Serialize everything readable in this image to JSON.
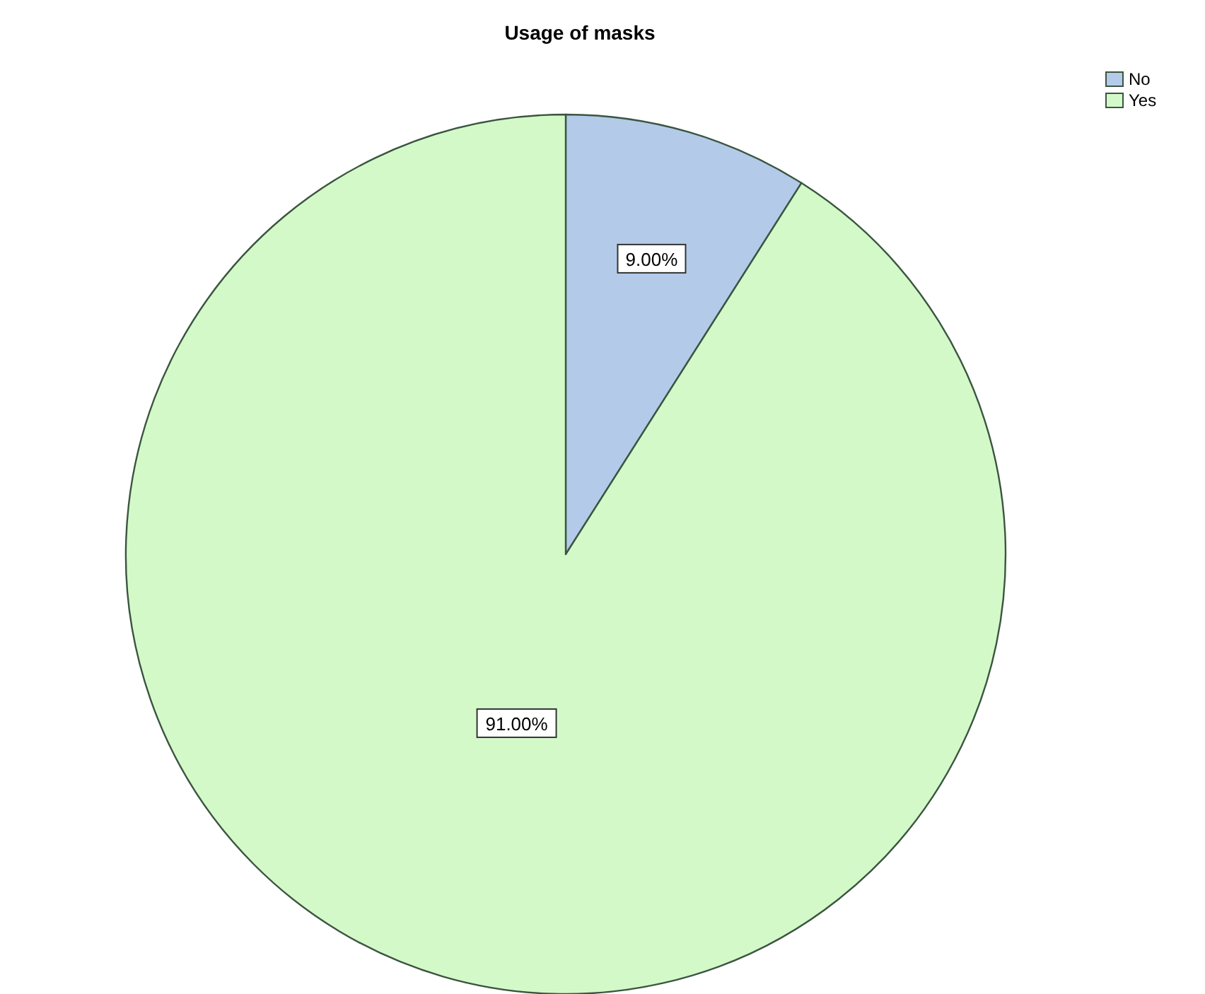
{
  "chart_data": {
    "type": "pie",
    "title": "Usage of masks",
    "categories": [
      "No",
      "Yes"
    ],
    "values": [
      9,
      91
    ],
    "value_labels": [
      "9.00%",
      "91.00%"
    ],
    "colors": [
      "#b3cbe9",
      "#d4f9c9"
    ],
    "legend": "top right"
  }
}
